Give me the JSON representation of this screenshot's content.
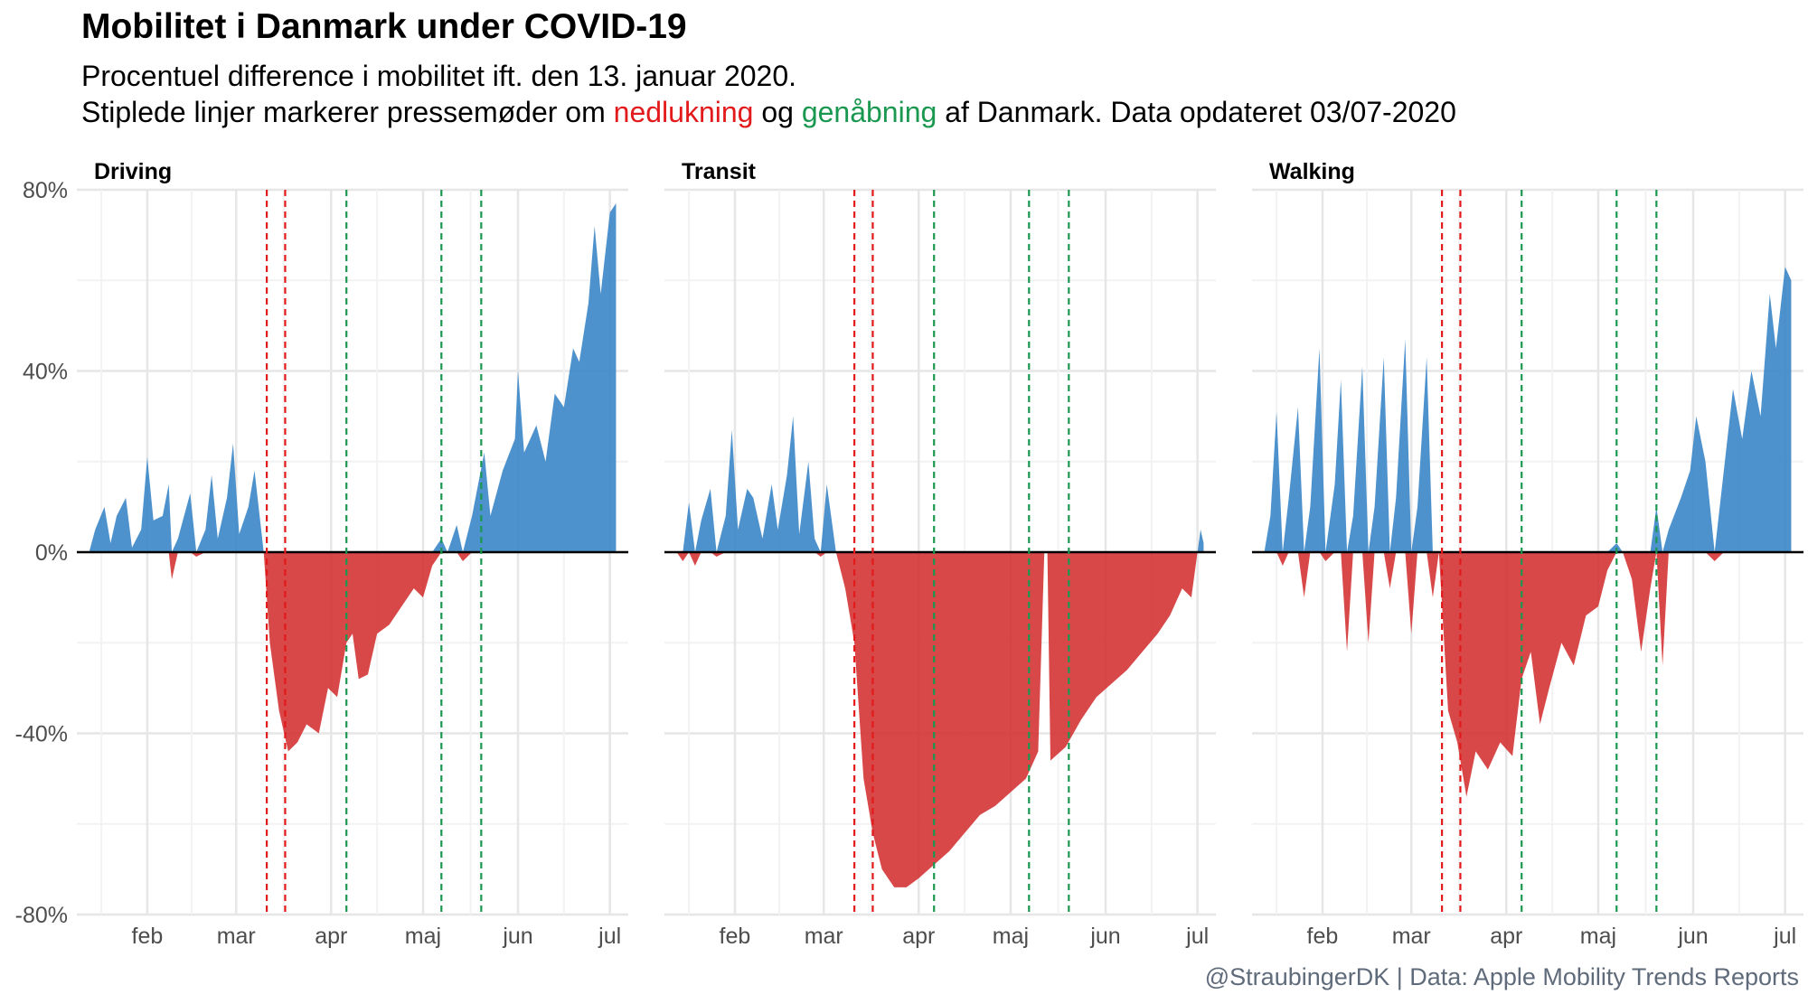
{
  "title": "Mobilitet i Danmark under COVID-19",
  "subtitle_line1": "Procentuel difference i mobilitet ift. den 13. januar 2020.",
  "subtitle_line2": {
    "prefix": "Stiplede linjer markerer pressemøder om ",
    "word_red": "nedlukning",
    "middle": " og ",
    "word_green": "genåbning",
    "suffix": " af Danmark. Data opdateret 03/07-2020"
  },
  "caption": "@StraubingerDK | Data: Apple Mobility Trends Reports",
  "colors": {
    "positive": "#3A86C8",
    "negative": "#D32F2F",
    "lockdown_line": "#E31A1C",
    "reopening_line": "#1A9850",
    "zero_line": "#000000",
    "grid": "#E6E6E6"
  },
  "chart_data": [
    {
      "type": "area",
      "panel": "Driving",
      "x_start": "2020-01-13",
      "x_end": "2020-07-03",
      "x_ticks": [
        {
          "date": "2020-02-01",
          "label": "feb"
        },
        {
          "date": "2020-03-01",
          "label": "mar"
        },
        {
          "date": "2020-04-01",
          "label": "apr"
        },
        {
          "date": "2020-05-01",
          "label": "maj"
        },
        {
          "date": "2020-06-01",
          "label": "jun"
        },
        {
          "date": "2020-07-01",
          "label": "jul"
        }
      ],
      "ylim": [
        -80,
        80
      ],
      "y_ticks": [
        -80,
        -40,
        0,
        40,
        80
      ],
      "y_tick_labels": [
        "-80%",
        "-40%",
        "0%",
        "40%",
        "80%"
      ],
      "lockdown_dates": [
        "2020-03-11",
        "2020-03-17"
      ],
      "reopening_dates": [
        "2020-04-06",
        "2020-05-07",
        "2020-05-20"
      ],
      "series": [
        {
          "date": "2020-01-13",
          "value": 0
        },
        {
          "date": "2020-01-15",
          "value": 5
        },
        {
          "date": "2020-01-18",
          "value": 10
        },
        {
          "date": "2020-01-20",
          "value": 2
        },
        {
          "date": "2020-01-22",
          "value": 8
        },
        {
          "date": "2020-01-25",
          "value": 12
        },
        {
          "date": "2020-01-27",
          "value": 1
        },
        {
          "date": "2020-01-30",
          "value": 5
        },
        {
          "date": "2020-02-01",
          "value": 21
        },
        {
          "date": "2020-02-03",
          "value": 7
        },
        {
          "date": "2020-02-06",
          "value": 8
        },
        {
          "date": "2020-02-08",
          "value": 15
        },
        {
          "date": "2020-02-09",
          "value": -6
        },
        {
          "date": "2020-02-11",
          "value": 3
        },
        {
          "date": "2020-02-15",
          "value": 13
        },
        {
          "date": "2020-02-17",
          "value": -1
        },
        {
          "date": "2020-02-20",
          "value": 5
        },
        {
          "date": "2020-02-22",
          "value": 17
        },
        {
          "date": "2020-02-24",
          "value": 3
        },
        {
          "date": "2020-02-27",
          "value": 12
        },
        {
          "date": "2020-02-29",
          "value": 24
        },
        {
          "date": "2020-03-02",
          "value": 4
        },
        {
          "date": "2020-03-05",
          "value": 10
        },
        {
          "date": "2020-03-07",
          "value": 18
        },
        {
          "date": "2020-03-10",
          "value": 0
        },
        {
          "date": "2020-03-12",
          "value": -20
        },
        {
          "date": "2020-03-15",
          "value": -35
        },
        {
          "date": "2020-03-18",
          "value": -44
        },
        {
          "date": "2020-03-21",
          "value": -42
        },
        {
          "date": "2020-03-24",
          "value": -38
        },
        {
          "date": "2020-03-28",
          "value": -40
        },
        {
          "date": "2020-03-31",
          "value": -30
        },
        {
          "date": "2020-04-03",
          "value": -32
        },
        {
          "date": "2020-04-06",
          "value": -20
        },
        {
          "date": "2020-04-08",
          "value": -18
        },
        {
          "date": "2020-04-10",
          "value": -28
        },
        {
          "date": "2020-04-13",
          "value": -27
        },
        {
          "date": "2020-04-16",
          "value": -18
        },
        {
          "date": "2020-04-20",
          "value": -16
        },
        {
          "date": "2020-04-24",
          "value": -12
        },
        {
          "date": "2020-04-28",
          "value": -8
        },
        {
          "date": "2020-05-01",
          "value": -10
        },
        {
          "date": "2020-05-04",
          "value": -3
        },
        {
          "date": "2020-05-07",
          "value": 3
        },
        {
          "date": "2020-05-09",
          "value": 0
        },
        {
          "date": "2020-05-12",
          "value": 6
        },
        {
          "date": "2020-05-14",
          "value": -2
        },
        {
          "date": "2020-05-17",
          "value": 8
        },
        {
          "date": "2020-05-21",
          "value": 22
        },
        {
          "date": "2020-05-23",
          "value": 8
        },
        {
          "date": "2020-05-27",
          "value": 18
        },
        {
          "date": "2020-05-31",
          "value": 25
        },
        {
          "date": "2020-06-01",
          "value": 40
        },
        {
          "date": "2020-06-03",
          "value": 22
        },
        {
          "date": "2020-06-07",
          "value": 28
        },
        {
          "date": "2020-06-10",
          "value": 20
        },
        {
          "date": "2020-06-13",
          "value": 35
        },
        {
          "date": "2020-06-16",
          "value": 32
        },
        {
          "date": "2020-06-19",
          "value": 45
        },
        {
          "date": "2020-06-21",
          "value": 42
        },
        {
          "date": "2020-06-24",
          "value": 55
        },
        {
          "date": "2020-06-26",
          "value": 72
        },
        {
          "date": "2020-06-28",
          "value": 57
        },
        {
          "date": "2020-07-01",
          "value": 75
        },
        {
          "date": "2020-07-03",
          "value": 77
        }
      ]
    },
    {
      "type": "area",
      "panel": "Transit",
      "x_start": "2020-01-13",
      "x_end": "2020-07-03",
      "x_ticks": [
        {
          "date": "2020-02-01",
          "label": "feb"
        },
        {
          "date": "2020-03-01",
          "label": "mar"
        },
        {
          "date": "2020-04-01",
          "label": "apr"
        },
        {
          "date": "2020-05-01",
          "label": "maj"
        },
        {
          "date": "2020-06-01",
          "label": "jun"
        },
        {
          "date": "2020-07-01",
          "label": "jul"
        }
      ],
      "ylim": [
        -80,
        80
      ],
      "y_ticks": [
        -80,
        -40,
        0,
        40,
        80
      ],
      "y_tick_labels": [
        "-80%",
        "-40%",
        "0%",
        "40%",
        "80%"
      ],
      "lockdown_dates": [
        "2020-03-11",
        "2020-03-17"
      ],
      "reopening_dates": [
        "2020-04-06",
        "2020-05-07",
        "2020-05-20"
      ],
      "series": [
        {
          "date": "2020-01-13",
          "value": 0
        },
        {
          "date": "2020-01-15",
          "value": -2
        },
        {
          "date": "2020-01-17",
          "value": 11
        },
        {
          "date": "2020-01-19",
          "value": -3
        },
        {
          "date": "2020-01-21",
          "value": 7
        },
        {
          "date": "2020-01-24",
          "value": 14
        },
        {
          "date": "2020-01-26",
          "value": -1
        },
        {
          "date": "2020-01-29",
          "value": 8
        },
        {
          "date": "2020-01-31",
          "value": 27
        },
        {
          "date": "2020-02-02",
          "value": 5
        },
        {
          "date": "2020-02-05",
          "value": 14
        },
        {
          "date": "2020-02-07",
          "value": 12
        },
        {
          "date": "2020-02-10",
          "value": 3
        },
        {
          "date": "2020-02-13",
          "value": 15
        },
        {
          "date": "2020-02-15",
          "value": 5
        },
        {
          "date": "2020-02-18",
          "value": 17
        },
        {
          "date": "2020-02-20",
          "value": 30
        },
        {
          "date": "2020-02-22",
          "value": 4
        },
        {
          "date": "2020-02-25",
          "value": 20
        },
        {
          "date": "2020-02-27",
          "value": 3
        },
        {
          "date": "2020-02-29",
          "value": -1
        },
        {
          "date": "2020-03-02",
          "value": 15
        },
        {
          "date": "2020-03-05",
          "value": 0
        },
        {
          "date": "2020-03-08",
          "value": -8
        },
        {
          "date": "2020-03-11",
          "value": -20
        },
        {
          "date": "2020-03-14",
          "value": -50
        },
        {
          "date": "2020-03-17",
          "value": -62
        },
        {
          "date": "2020-03-20",
          "value": -70
        },
        {
          "date": "2020-03-24",
          "value": -74
        },
        {
          "date": "2020-03-28",
          "value": -74
        },
        {
          "date": "2020-04-01",
          "value": -72
        },
        {
          "date": "2020-04-06",
          "value": -69
        },
        {
          "date": "2020-04-11",
          "value": -66
        },
        {
          "date": "2020-04-16",
          "value": -62
        },
        {
          "date": "2020-04-21",
          "value": -58
        },
        {
          "date": "2020-04-26",
          "value": -56
        },
        {
          "date": "2020-05-01",
          "value": -53
        },
        {
          "date": "2020-05-06",
          "value": -50
        },
        {
          "date": "2020-05-10",
          "value": -44
        },
        {
          "date": "2020-05-12",
          "value": 0
        },
        {
          "date": "2020-05-13",
          "value": 0
        },
        {
          "date": "2020-05-14",
          "value": -46
        },
        {
          "date": "2020-05-19",
          "value": -43
        },
        {
          "date": "2020-05-24",
          "value": -37
        },
        {
          "date": "2020-05-29",
          "value": -32
        },
        {
          "date": "2020-06-03",
          "value": -29
        },
        {
          "date": "2020-06-08",
          "value": -26
        },
        {
          "date": "2020-06-13",
          "value": -22
        },
        {
          "date": "2020-06-18",
          "value": -18
        },
        {
          "date": "2020-06-22",
          "value": -14
        },
        {
          "date": "2020-06-26",
          "value": -8
        },
        {
          "date": "2020-06-29",
          "value": -10
        },
        {
          "date": "2020-07-01",
          "value": 0
        },
        {
          "date": "2020-07-02",
          "value": 5
        },
        {
          "date": "2020-07-03",
          "value": 2
        }
      ]
    },
    {
      "type": "area",
      "panel": "Walking",
      "x_start": "2020-01-13",
      "x_end": "2020-07-03",
      "x_ticks": [
        {
          "date": "2020-02-01",
          "label": "feb"
        },
        {
          "date": "2020-03-01",
          "label": "mar"
        },
        {
          "date": "2020-04-01",
          "label": "apr"
        },
        {
          "date": "2020-05-01",
          "label": "maj"
        },
        {
          "date": "2020-06-01",
          "label": "jun"
        },
        {
          "date": "2020-07-01",
          "label": "jul"
        }
      ],
      "ylim": [
        -80,
        80
      ],
      "y_ticks": [
        -80,
        -40,
        0,
        40,
        80
      ],
      "y_tick_labels": [
        "-80%",
        "-40%",
        "0%",
        "40%",
        "80%"
      ],
      "lockdown_dates": [
        "2020-03-11",
        "2020-03-17"
      ],
      "reopening_dates": [
        "2020-04-06",
        "2020-05-07",
        "2020-05-20"
      ],
      "series": [
        {
          "date": "2020-01-13",
          "value": 0
        },
        {
          "date": "2020-01-15",
          "value": 8
        },
        {
          "date": "2020-01-17",
          "value": 31
        },
        {
          "date": "2020-01-19",
          "value": -3
        },
        {
          "date": "2020-01-21",
          "value": 12
        },
        {
          "date": "2020-01-24",
          "value": 32
        },
        {
          "date": "2020-01-26",
          "value": -10
        },
        {
          "date": "2020-01-28",
          "value": 10
        },
        {
          "date": "2020-01-31",
          "value": 45
        },
        {
          "date": "2020-02-02",
          "value": -2
        },
        {
          "date": "2020-02-05",
          "value": 15
        },
        {
          "date": "2020-02-07",
          "value": 38
        },
        {
          "date": "2020-02-09",
          "value": -22
        },
        {
          "date": "2020-02-11",
          "value": 8
        },
        {
          "date": "2020-02-14",
          "value": 41
        },
        {
          "date": "2020-02-16",
          "value": -20
        },
        {
          "date": "2020-02-18",
          "value": 10
        },
        {
          "date": "2020-02-21",
          "value": 43
        },
        {
          "date": "2020-02-23",
          "value": -8
        },
        {
          "date": "2020-02-25",
          "value": 12
        },
        {
          "date": "2020-02-28",
          "value": 47
        },
        {
          "date": "2020-03-01",
          "value": -18
        },
        {
          "date": "2020-03-03",
          "value": 10
        },
        {
          "date": "2020-03-06",
          "value": 43
        },
        {
          "date": "2020-03-08",
          "value": -10
        },
        {
          "date": "2020-03-10",
          "value": 0
        },
        {
          "date": "2020-03-13",
          "value": -35
        },
        {
          "date": "2020-03-16",
          "value": -42
        },
        {
          "date": "2020-03-19",
          "value": -54
        },
        {
          "date": "2020-03-22",
          "value": -44
        },
        {
          "date": "2020-03-26",
          "value": -48
        },
        {
          "date": "2020-03-30",
          "value": -42
        },
        {
          "date": "2020-04-03",
          "value": -45
        },
        {
          "date": "2020-04-06",
          "value": -28
        },
        {
          "date": "2020-04-09",
          "value": -22
        },
        {
          "date": "2020-04-12",
          "value": -38
        },
        {
          "date": "2020-04-15",
          "value": -30
        },
        {
          "date": "2020-04-19",
          "value": -20
        },
        {
          "date": "2020-04-23",
          "value": -25
        },
        {
          "date": "2020-04-27",
          "value": -14
        },
        {
          "date": "2020-05-01",
          "value": -12
        },
        {
          "date": "2020-05-04",
          "value": -4
        },
        {
          "date": "2020-05-07",
          "value": 2
        },
        {
          "date": "2020-05-09",
          "value": 0
        },
        {
          "date": "2020-05-12",
          "value": -6
        },
        {
          "date": "2020-05-15",
          "value": -22
        },
        {
          "date": "2020-05-18",
          "value": -8
        },
        {
          "date": "2020-05-20",
          "value": 10
        },
        {
          "date": "2020-05-22",
          "value": -25
        },
        {
          "date": "2020-05-24",
          "value": 5
        },
        {
          "date": "2020-05-28",
          "value": 12
        },
        {
          "date": "2020-05-31",
          "value": 18
        },
        {
          "date": "2020-06-02",
          "value": 30
        },
        {
          "date": "2020-06-05",
          "value": 20
        },
        {
          "date": "2020-06-08",
          "value": -2
        },
        {
          "date": "2020-06-11",
          "value": 18
        },
        {
          "date": "2020-06-14",
          "value": 36
        },
        {
          "date": "2020-06-17",
          "value": 25
        },
        {
          "date": "2020-06-20",
          "value": 40
        },
        {
          "date": "2020-06-23",
          "value": 30
        },
        {
          "date": "2020-06-26",
          "value": 57
        },
        {
          "date": "2020-06-28",
          "value": 45
        },
        {
          "date": "2020-07-01",
          "value": 63
        },
        {
          "date": "2020-07-03",
          "value": 60
        }
      ]
    }
  ]
}
